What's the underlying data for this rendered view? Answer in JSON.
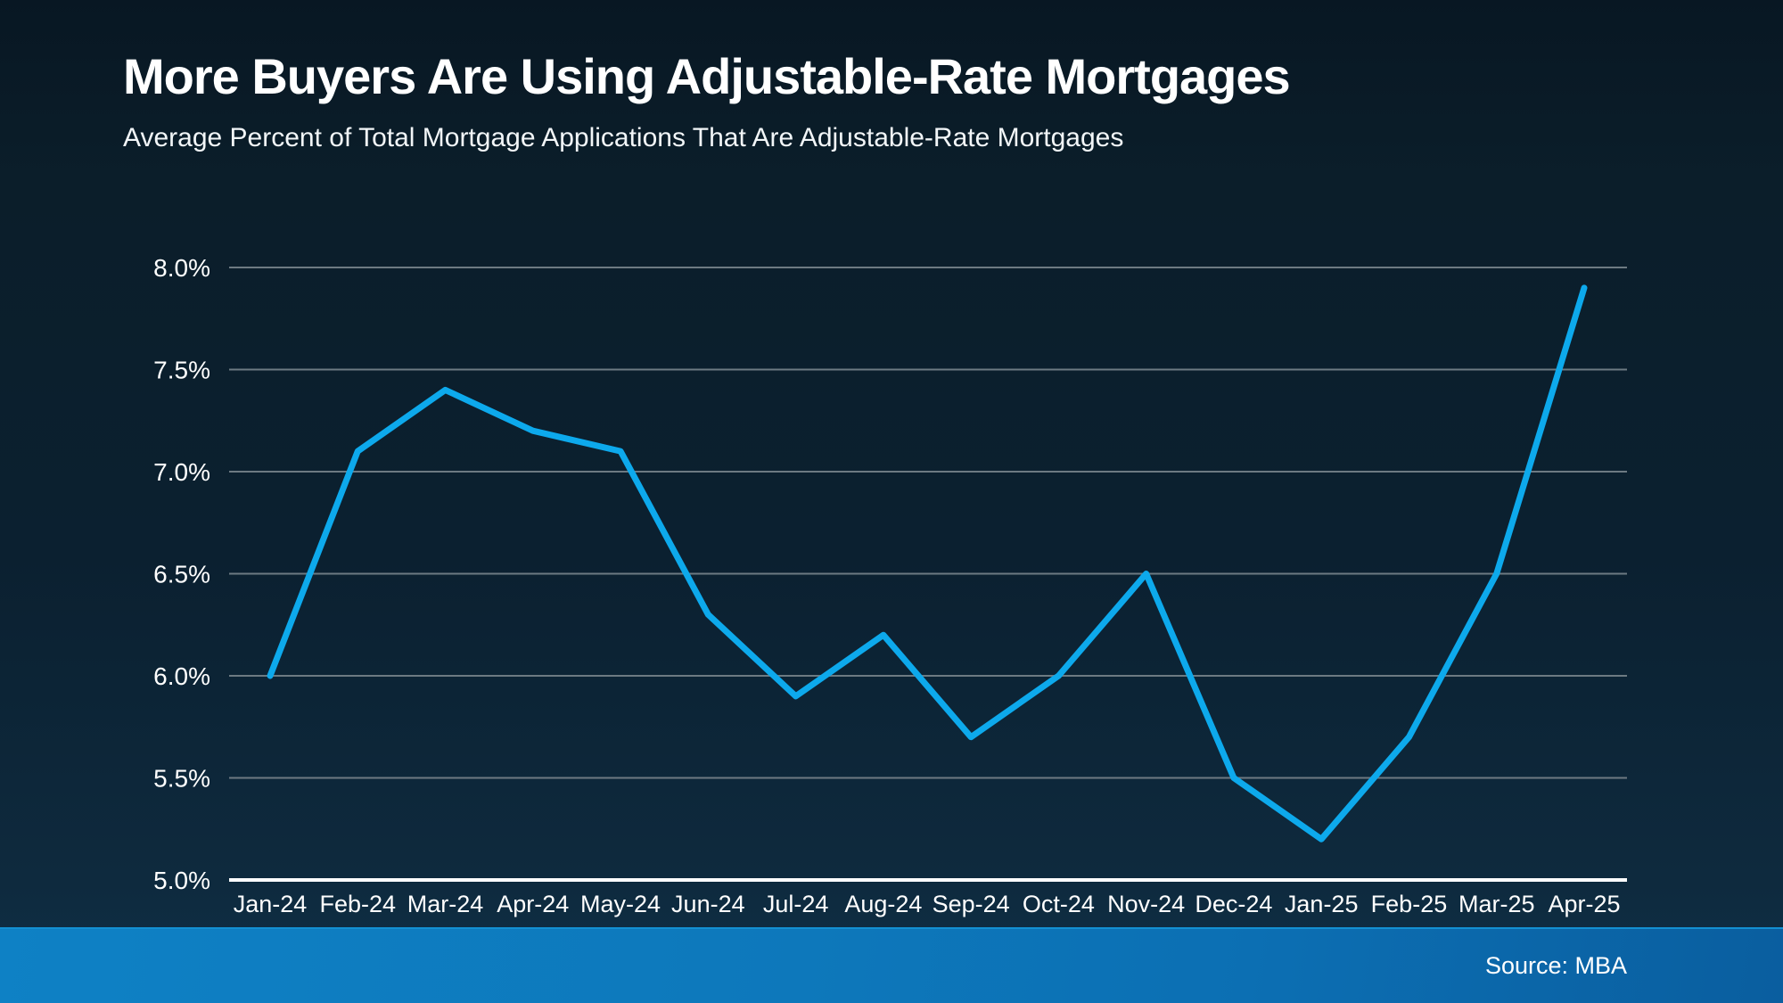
{
  "chart_data": {
    "type": "line",
    "title": "More Buyers Are Using Adjustable-Rate Mortgages",
    "subtitle": "Average Percent of Total Mortgage Applications That Are Adjustable-Rate Mortgages",
    "source": "Source: MBA",
    "categories": [
      "Jan-24",
      "Feb-24",
      "Mar-24",
      "Apr-24",
      "May-24",
      "Jun-24",
      "Jul-24",
      "Aug-24",
      "Sep-24",
      "Oct-24",
      "Nov-24",
      "Dec-24",
      "Jan-25",
      "Feb-25",
      "Mar-25",
      "Apr-25"
    ],
    "values": [
      6.0,
      7.1,
      7.4,
      7.2,
      7.1,
      6.3,
      5.9,
      6.2,
      5.7,
      6.0,
      6.5,
      5.5,
      5.2,
      5.7,
      6.5,
      7.9
    ],
    "xlabel": "",
    "ylabel": "",
    "ylim": [
      5.0,
      8.0
    ],
    "ytick_step": 0.5,
    "ytick_labels": [
      "5.0%",
      "5.5%",
      "6.0%",
      "6.5%",
      "7.0%",
      "7.5%",
      "8.0%"
    ],
    "grid": true,
    "legend_position": "none"
  },
  "theme": {
    "line_color": "#0da9ec",
    "gridline_color": "#6d7a82",
    "axis_color": "#ffffff",
    "label_color": "#ffffff",
    "background_top": "#0b1e2a",
    "background_bottom": "#0f2c42",
    "footer_blue_left": "#0e81c5",
    "footer_blue_right": "#0a5e9f"
  }
}
